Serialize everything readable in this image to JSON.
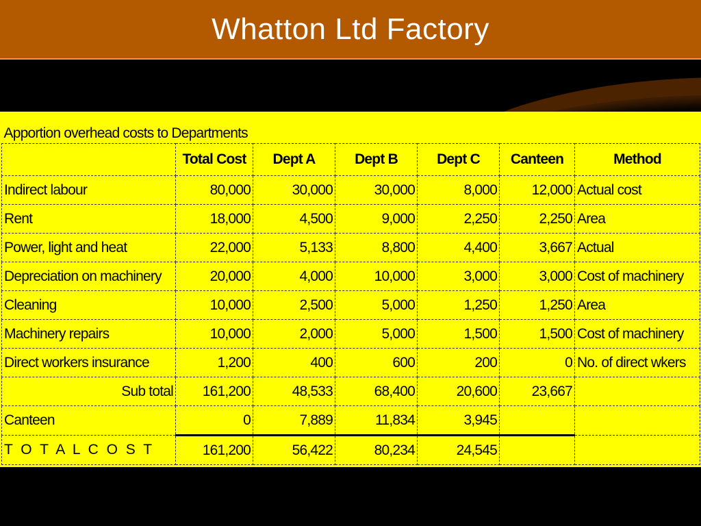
{
  "title": "Whatton Ltd Factory",
  "colors": {
    "title_bar": "#b35900",
    "sheet": "#ffff00",
    "background": "#000000"
  },
  "table": {
    "caption": "Apportion overhead costs to Departments",
    "headers": [
      "",
      "Total Cost",
      "Dept A",
      "Dept B",
      "Dept C",
      "Canteen",
      "Method"
    ],
    "rows": [
      [
        "Indirect labour",
        "80,000",
        "30,000",
        "30,000",
        "8,000",
        "12,000",
        "Actual cost"
      ],
      [
        "Rent",
        "18,000",
        "4,500",
        "9,000",
        "2,250",
        "2,250",
        "Area"
      ],
      [
        "Power, light and heat",
        "22,000",
        "5,133",
        "8,800",
        "4,400",
        "3,667",
        "Actual"
      ],
      [
        "Depreciation on machinery",
        "20,000",
        "4,000",
        "10,000",
        "3,000",
        "3,000",
        "Cost of machinery"
      ],
      [
        "Cleaning",
        "10,000",
        "2,500",
        "5,000",
        "1,250",
        "1,250",
        "Area"
      ],
      [
        "Machinery repairs",
        "10,000",
        "2,000",
        "5,000",
        "1,500",
        "1,500",
        "Cost of machinery"
      ],
      [
        "Direct workers insurance",
        "1,200",
        "400",
        "600",
        "200",
        "0",
        "No. of direct wkers"
      ],
      [
        "Sub total",
        "161,200",
        "48,533",
        "68,400",
        "20,600",
        "23,667",
        ""
      ],
      [
        "Canteen",
        "0",
        "7,889",
        "11,834",
        "3,945",
        "",
        ""
      ],
      [
        "T O T A L   C O S T",
        "161,200",
        "56,422",
        "80,234",
        "24,545",
        "",
        ""
      ]
    ]
  }
}
